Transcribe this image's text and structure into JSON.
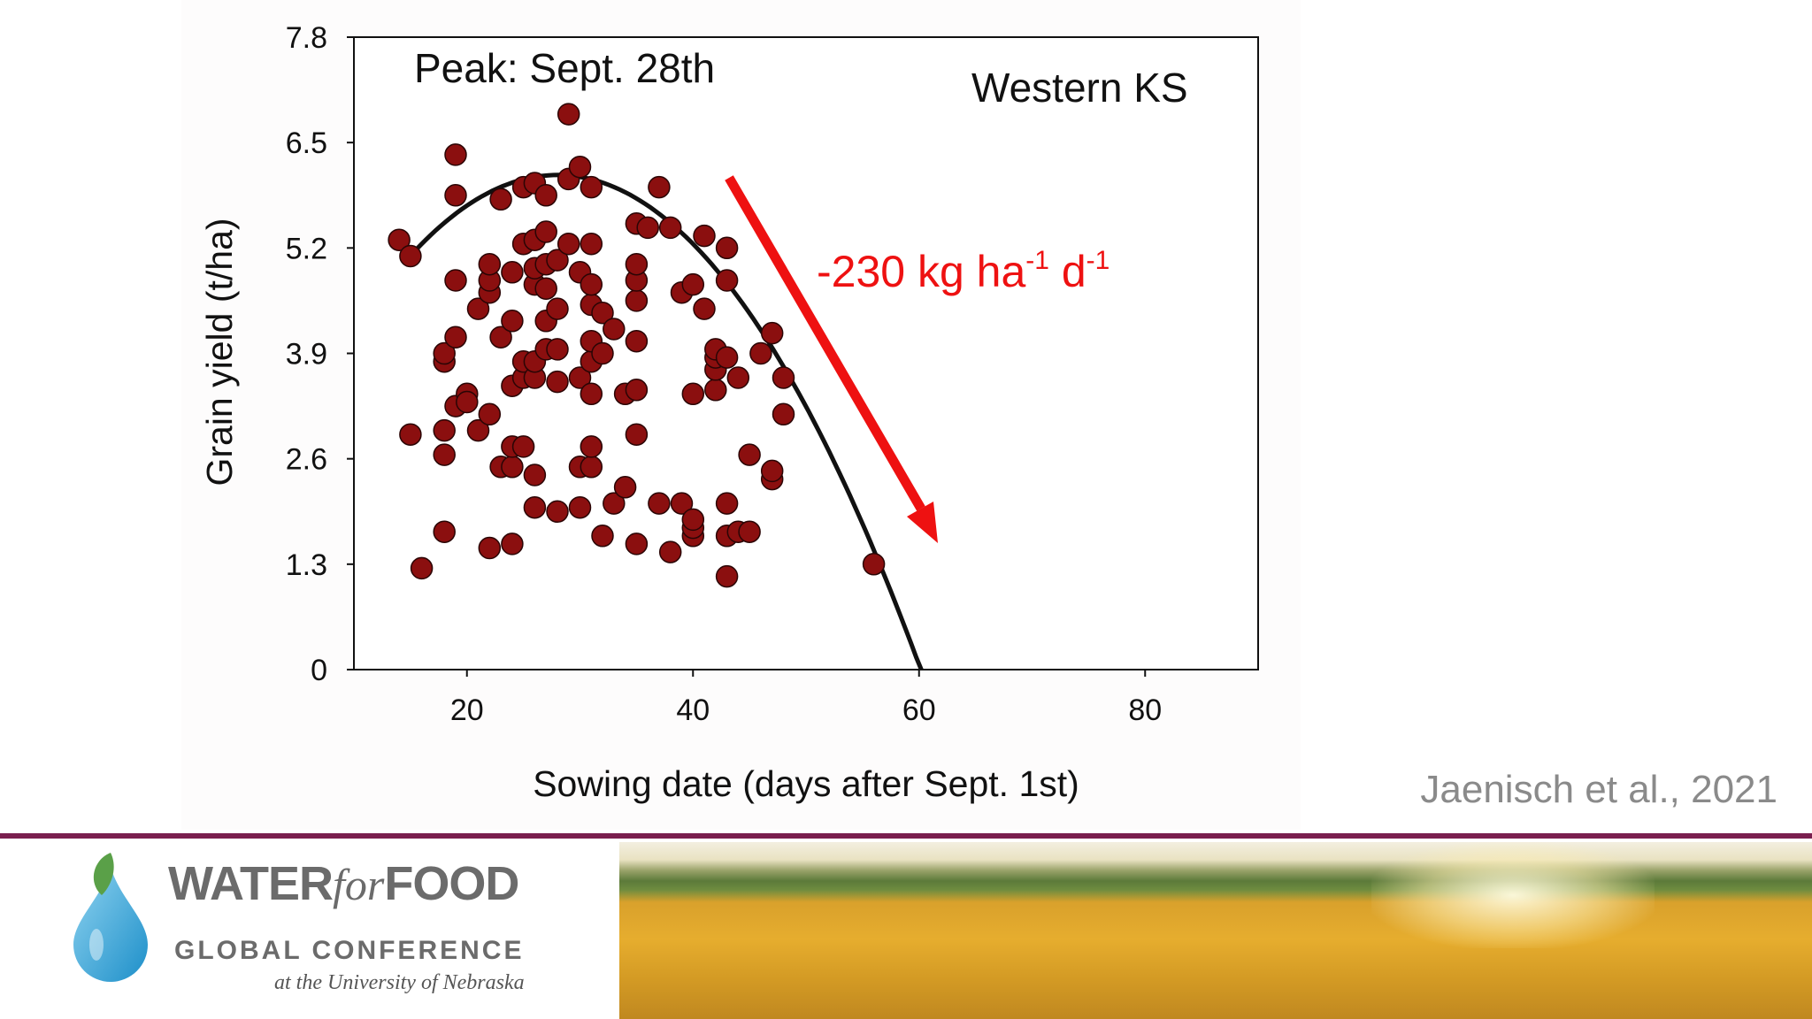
{
  "chart_data": {
    "type": "scatter",
    "title": "",
    "xlabel": "Sowing date (days after Sept. 1st)",
    "ylabel": "Grain yield (t/ha)",
    "xlim": [
      10,
      90
    ],
    "ylim": [
      0,
      7.8
    ],
    "xticks": [
      "20",
      "40",
      "60",
      "80"
    ],
    "yticks": [
      "0",
      "1.3",
      "2.6",
      "3.9",
      "5.2",
      "6.5",
      "7.8"
    ],
    "annotations": {
      "peak": "Peak: Sept. 28th",
      "region": "Western KS",
      "rate_prefix": "-230 kg ha",
      "rate_sup1": "-1",
      "rate_mid": " d",
      "rate_sup2": "-1"
    },
    "fit_curve": {
      "type": "quadratic",
      "vertex_x": 28,
      "vertex_y": 6.1,
      "a": -0.0059,
      "x_range": [
        15,
        60.2
      ]
    },
    "trend_arrow": {
      "direction": "down",
      "color": "#ee1111"
    },
    "point_color": "#8b0f0f",
    "points": [
      [
        14,
        5.3
      ],
      [
        15,
        5.1
      ],
      [
        15,
        2.9
      ],
      [
        16,
        1.25
      ],
      [
        18,
        1.7
      ],
      [
        18,
        2.65
      ],
      [
        18,
        2.95
      ],
      [
        18,
        3.8
      ],
      [
        18,
        3.9
      ],
      [
        19,
        6.35
      ],
      [
        19,
        5.85
      ],
      [
        19,
        4.8
      ],
      [
        19,
        4.1
      ],
      [
        19,
        3.25
      ],
      [
        20,
        3.4
      ],
      [
        20,
        3.3
      ],
      [
        21,
        2.95
      ],
      [
        21,
        4.45
      ],
      [
        22,
        1.5
      ],
      [
        22,
        3.15
      ],
      [
        22,
        4.65
      ],
      [
        22,
        4.8
      ],
      [
        22,
        5.0
      ],
      [
        23,
        4.1
      ],
      [
        23,
        5.8
      ],
      [
        23,
        2.5
      ],
      [
        24,
        1.55
      ],
      [
        24,
        2.5
      ],
      [
        24,
        2.75
      ],
      [
        24,
        3.5
      ],
      [
        24,
        4.3
      ],
      [
        24,
        4.9
      ],
      [
        25,
        2.75
      ],
      [
        25,
        3.6
      ],
      [
        25,
        3.8
      ],
      [
        25,
        5.25
      ],
      [
        25,
        5.95
      ],
      [
        26,
        2.0
      ],
      [
        26,
        2.4
      ],
      [
        26,
        3.6
      ],
      [
        26,
        3.8
      ],
      [
        26,
        4.75
      ],
      [
        26,
        4.95
      ],
      [
        26,
        5.3
      ],
      [
        26,
        6.0
      ],
      [
        27,
        3.95
      ],
      [
        27,
        4.3
      ],
      [
        27,
        4.7
      ],
      [
        27,
        5.0
      ],
      [
        27,
        5.4
      ],
      [
        27,
        5.85
      ],
      [
        28,
        1.95
      ],
      [
        28,
        3.55
      ],
      [
        28,
        3.95
      ],
      [
        28,
        4.45
      ],
      [
        28,
        5.05
      ],
      [
        29,
        5.25
      ],
      [
        29,
        6.05
      ],
      [
        29,
        6.85
      ],
      [
        30,
        2.0
      ],
      [
        30,
        2.5
      ],
      [
        30,
        3.6
      ],
      [
        30,
        4.9
      ],
      [
        30,
        6.2
      ],
      [
        31,
        2.5
      ],
      [
        31,
        2.75
      ],
      [
        31,
        3.4
      ],
      [
        31,
        3.8
      ],
      [
        31,
        4.05
      ],
      [
        31,
        4.5
      ],
      [
        31,
        4.75
      ],
      [
        31,
        5.25
      ],
      [
        31,
        5.95
      ],
      [
        32,
        1.65
      ],
      [
        32,
        3.9
      ],
      [
        32,
        4.4
      ],
      [
        33,
        2.05
      ],
      [
        33,
        4.2
      ],
      [
        34,
        2.25
      ],
      [
        34,
        3.4
      ],
      [
        35,
        1.55
      ],
      [
        35,
        2.9
      ],
      [
        35,
        3.45
      ],
      [
        35,
        4.05
      ],
      [
        35,
        4.55
      ],
      [
        35,
        4.8
      ],
      [
        35,
        5.0
      ],
      [
        35,
        5.5
      ],
      [
        36,
        5.45
      ],
      [
        37,
        2.05
      ],
      [
        37,
        5.95
      ],
      [
        38,
        1.45
      ],
      [
        38,
        5.45
      ],
      [
        39,
        2.05
      ],
      [
        39,
        4.65
      ],
      [
        40,
        1.65
      ],
      [
        40,
        1.75
      ],
      [
        40,
        1.85
      ],
      [
        40,
        3.4
      ],
      [
        40,
        4.75
      ],
      [
        41,
        4.45
      ],
      [
        41,
        5.35
      ],
      [
        42,
        3.45
      ],
      [
        42,
        3.7
      ],
      [
        42,
        3.85
      ],
      [
        42,
        3.95
      ],
      [
        43,
        1.15
      ],
      [
        43,
        1.65
      ],
      [
        43,
        2.05
      ],
      [
        43,
        3.85
      ],
      [
        43,
        4.8
      ],
      [
        43,
        5.2
      ],
      [
        44,
        1.7
      ],
      [
        44,
        3.6
      ],
      [
        45,
        1.7
      ],
      [
        45,
        2.65
      ],
      [
        46,
        3.9
      ],
      [
        47,
        2.35
      ],
      [
        47,
        2.45
      ],
      [
        47,
        4.15
      ],
      [
        48,
        3.15
      ],
      [
        48,
        3.6
      ],
      [
        56,
        1.3
      ]
    ]
  },
  "citation": "Jaenisch et al., 2021",
  "footer": {
    "logo_water": "WATER",
    "logo_for": "for",
    "logo_food": "FOOD",
    "logo_line2": "GLOBAL CONFERENCE",
    "logo_line3": "at the University of Nebraska",
    "colors": {
      "divider": "#7a1f4f",
      "drop_light": "#8fd3f0",
      "drop_dark": "#1d8fc9",
      "leaf": "#5aa048"
    },
    "logo_icon": "water-drop-with-leaf-icon",
    "photo_subject": "golden-wheat-field-photo"
  }
}
